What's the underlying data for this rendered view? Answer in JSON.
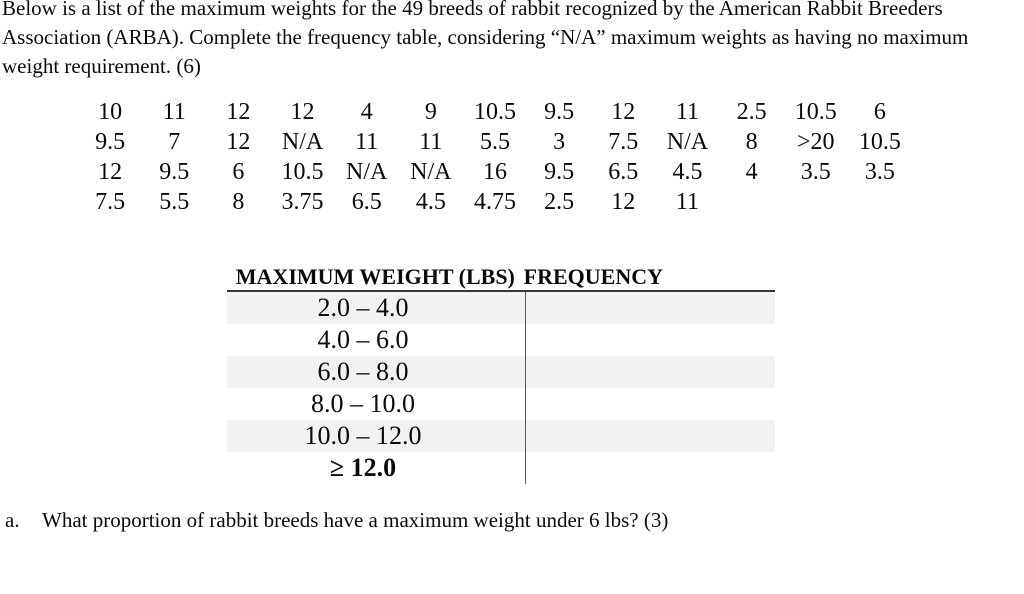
{
  "intro": {
    "lines": [
      "Below is a list of the maximum weights for the 49 breeds of rabbit recognized by the American Rabbit Breeders",
      "Association (ARBA). Complete the frequency table, considering “N/A” maximum weights as having no maximum",
      "weight requirement. (6)"
    ]
  },
  "weights_grid": {
    "rows": [
      [
        "10",
        "11",
        "12",
        "12",
        "4",
        "9",
        "10.5",
        "9.5",
        "12",
        "11",
        "2.5",
        "10.5",
        "6"
      ],
      [
        "9.5",
        "7",
        "12",
        "N/A",
        "11",
        "11",
        "5.5",
        "3",
        "7.5",
        "N/A",
        "8",
        ">20",
        "10.5"
      ],
      [
        "12",
        "9.5",
        "6",
        "10.5",
        "N/A",
        "N/A",
        "16",
        "9.5",
        "6.5",
        "4.5",
        "4",
        "3.5",
        "3.5"
      ],
      [
        "7.5",
        "5.5",
        "8",
        "3.75",
        "6.5",
        "4.5",
        "4.75",
        "2.5",
        "12",
        "11"
      ]
    ]
  },
  "frequency_table": {
    "headers": [
      "MAXIMUM WEIGHT (LBS)",
      "FREQUENCY"
    ],
    "rows": [
      {
        "range": "2.0 – 4.0",
        "frequency": ""
      },
      {
        "range": "4.0 – 6.0",
        "frequency": ""
      },
      {
        "range": "6.0 – 8.0",
        "frequency": ""
      },
      {
        "range": "8.0 – 10.0",
        "frequency": ""
      },
      {
        "range": "10.0 – 12.0",
        "frequency": ""
      },
      {
        "range": "≥ 12.0",
        "frequency": ""
      }
    ]
  },
  "question_a": {
    "label": "a.",
    "text": "What proportion of rabbit breeds have a maximum weight under 6 lbs? (3)"
  },
  "colors": {
    "row_shade": "#f2f2f2",
    "header_rule": "#383838",
    "column_divider": "#595959",
    "text": "#0a0a0a"
  }
}
